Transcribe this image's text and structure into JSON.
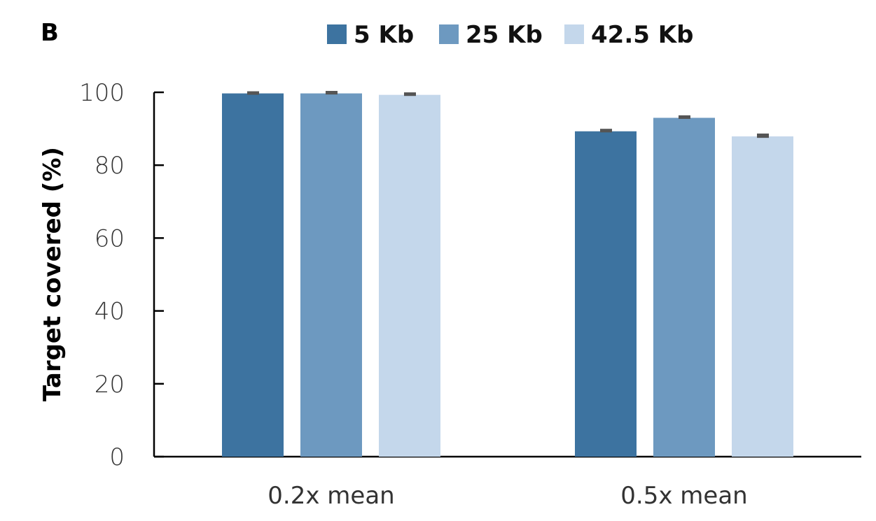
{
  "chart_data": {
    "type": "bar",
    "panel_label": "B",
    "title": "",
    "xlabel": "",
    "ylabel": "Target covered (%)",
    "ylim": [
      0,
      100
    ],
    "yticks": [
      0,
      20,
      40,
      60,
      80,
      100
    ],
    "categories": [
      "0.2x mean",
      "0.5x mean"
    ],
    "legend_position": "top",
    "grid": false,
    "series": [
      {
        "name": "5 Kb",
        "color": "#3d73a0",
        "values": [
          99.7,
          89.3
        ],
        "errors": [
          0.2,
          0.3
        ]
      },
      {
        "name": "25 Kb",
        "color": "#6d99c0",
        "values": [
          99.7,
          93.0
        ],
        "errors": [
          0.3,
          0.3
        ]
      },
      {
        "name": "42.5 Kb",
        "color": "#c4d7eb",
        "values": [
          99.3,
          87.9
        ],
        "errors": [
          0.3,
          0.4
        ]
      }
    ]
  }
}
